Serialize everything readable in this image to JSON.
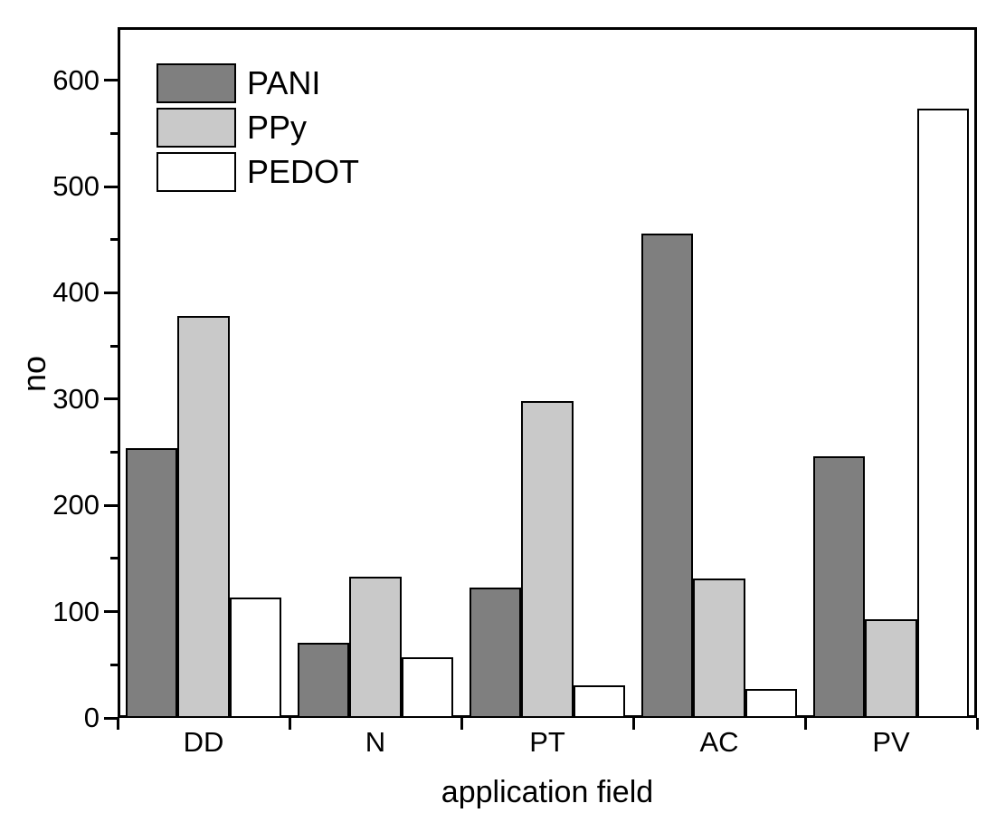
{
  "figure": {
    "background": "#ffffff",
    "text_color": "#000000",
    "axis_color": "#000000"
  },
  "chart_data": {
    "type": "bar",
    "title": "",
    "xlabel": "application field",
    "ylabel": "no",
    "categories": [
      "DD",
      "N",
      "PT",
      "AC",
      "PV"
    ],
    "series": [
      {
        "name": "PANI",
        "color": "#7f7f7f",
        "values": [
          254,
          71,
          123,
          456,
          246
        ]
      },
      {
        "name": "PPy",
        "color": "#c9c9c9",
        "values": [
          378,
          133,
          298,
          131,
          93
        ]
      },
      {
        "name": "PEDOT",
        "color": "#ffffff",
        "values": [
          113,
          57,
          31,
          27,
          573
        ]
      }
    ],
    "ylim": [
      0,
      650
    ],
    "yticks": [
      0,
      100,
      200,
      300,
      400,
      500,
      600
    ],
    "minor_tick_step": 50,
    "bar_outline_color": "#000000",
    "legend_position": "top-left",
    "grid": false
  }
}
